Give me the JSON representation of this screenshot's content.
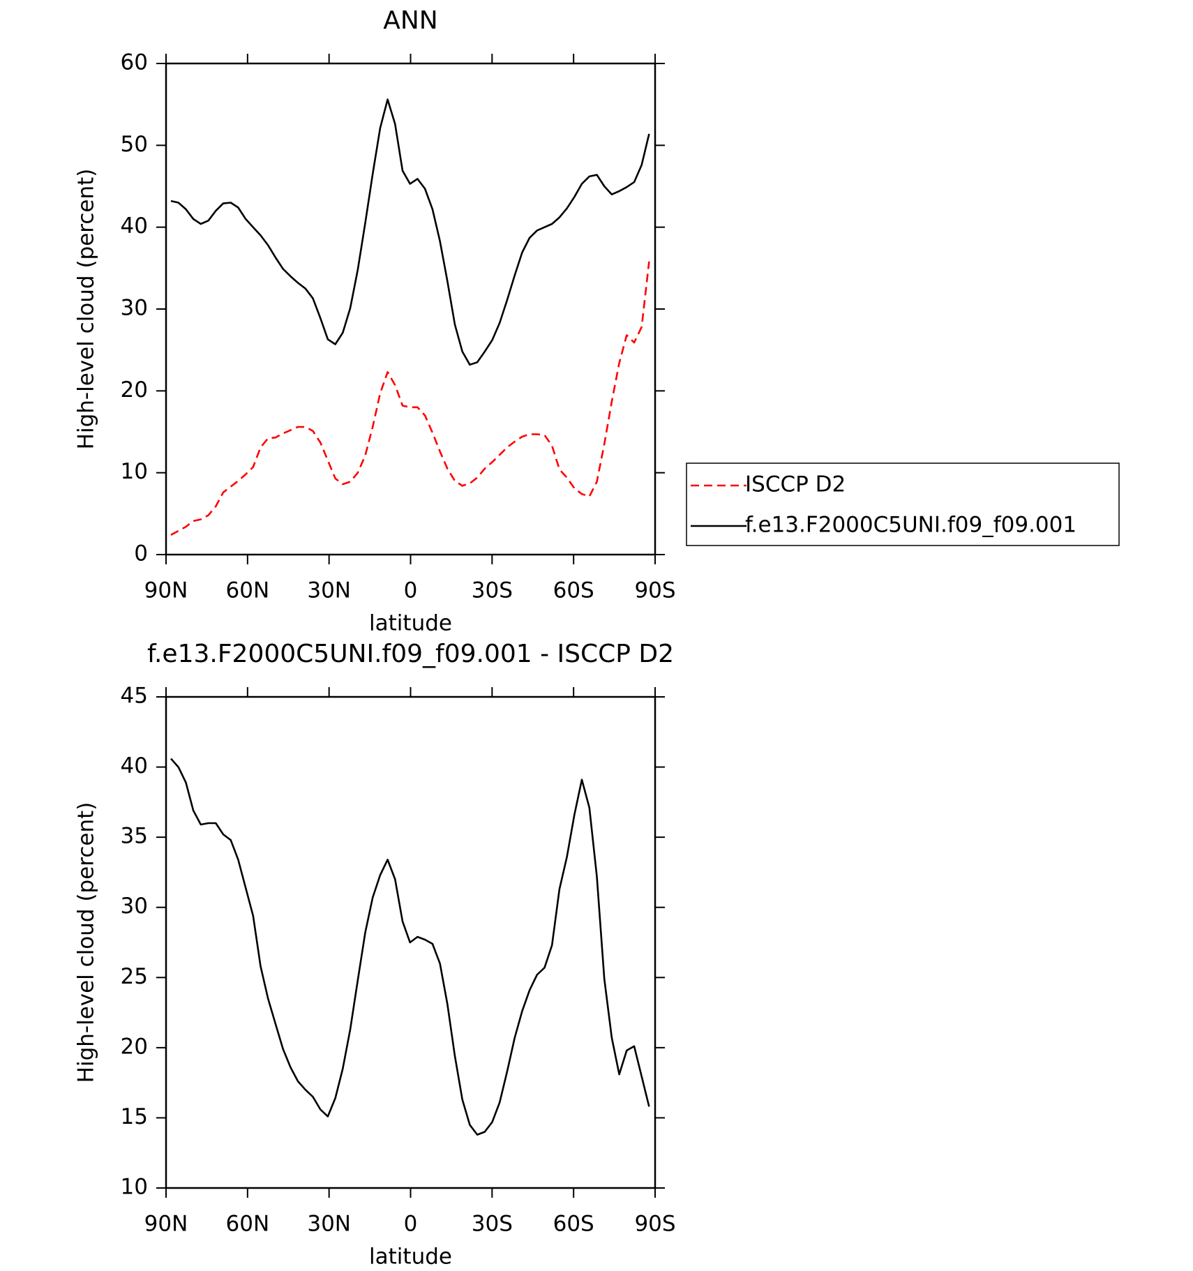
{
  "chart_data": [
    {
      "type": "line",
      "title": "ANN",
      "xlabel": "latitude",
      "ylabel": "High-level cloud (percent)",
      "x": [
        88.2,
        85.45,
        82.7,
        79.95,
        77.2,
        74.45,
        71.7,
        68.95,
        66.2,
        63.45,
        60.7,
        57.95,
        55.2,
        52.45,
        49.7,
        46.95,
        44.2,
        41.45,
        38.7,
        35.95,
        33.2,
        30.45,
        27.7,
        24.95,
        22.2,
        19.45,
        16.7,
        13.95,
        11.2,
        8.45,
        5.7,
        2.95,
        0.2,
        -2.55,
        -5.3,
        -8.05,
        -10.8,
        -13.55,
        -16.3,
        -19.05,
        -21.8,
        -24.55,
        -27.3,
        -30.05,
        -32.8,
        -35.55,
        -38.3,
        -41.05,
        -43.8,
        -46.55,
        -49.3,
        -52.05,
        -54.8,
        -57.55,
        -60.3,
        -63.05,
        -65.8,
        -68.55,
        -71.3,
        -74.05,
        -76.8,
        -79.55,
        -82.3,
        -85.05,
        -87.8
      ],
      "series": [
        {
          "name": "ISCCP D2",
          "color": "#ff0000",
          "linestyle": "dashed",
          "values": [
            2.4,
            2.9,
            3.4,
            4.1,
            4.3,
            4.8,
            5.9,
            7.6,
            8.3,
            9.0,
            9.8,
            10.7,
            13.1,
            14.2,
            14.3,
            14.8,
            15.2,
            15.6,
            15.6,
            15.1,
            13.7,
            11.5,
            9.3,
            8.6,
            8.9,
            10.0,
            12.1,
            15.6,
            19.7,
            22.3,
            20.7,
            18.2,
            18.0,
            18.0,
            17.0,
            14.9,
            12.6,
            10.5,
            9.0,
            8.4,
            8.7,
            9.4,
            10.5,
            11.3,
            12.2,
            13.1,
            13.8,
            14.4,
            14.7,
            14.7,
            14.6,
            13.3,
            10.4,
            9.4,
            8.1,
            7.4,
            7.1,
            8.9,
            13.5,
            18.7,
            23.4,
            26.8,
            25.9,
            27.8,
            35.8
          ]
        },
        {
          "name": "f.e13.F2000C5UNI.f09_f09.001",
          "color": "#000000",
          "linestyle": "solid",
          "values": [
            43.2,
            43.0,
            42.2,
            41.0,
            40.4,
            40.8,
            42.0,
            42.9,
            43.0,
            42.4,
            41.0,
            40.0,
            39.0,
            37.8,
            36.3,
            34.9,
            34.0,
            33.2,
            32.5,
            31.3,
            28.9,
            26.3,
            25.7,
            27.1,
            30.1,
            34.8,
            40.5,
            46.5,
            52.1,
            55.6,
            52.6,
            46.9,
            45.3,
            45.9,
            44.7,
            42.2,
            38.3,
            33.4,
            28.1,
            24.8,
            23.2,
            23.5,
            24.8,
            26.2,
            28.3,
            31.1,
            34.1,
            36.9,
            38.7,
            39.6,
            40.0,
            40.4,
            41.2,
            42.3,
            43.7,
            45.3,
            46.2,
            46.4,
            45.0,
            44.0,
            44.4,
            44.9,
            45.5,
            47.6,
            51.4
          ]
        }
      ],
      "xlim": [
        90,
        -90
      ],
      "xticks": [
        {
          "value": 90,
          "label": "90N"
        },
        {
          "value": 60,
          "label": "60N"
        },
        {
          "value": 30,
          "label": "30N"
        },
        0,
        {
          "value": -30,
          "label": "30S"
        },
        {
          "value": -60,
          "label": "60S"
        },
        {
          "value": -90,
          "label": "90S"
        }
      ],
      "ylim": [
        0,
        60
      ],
      "yticks": [
        0,
        10,
        20,
        30,
        40,
        50,
        60
      ],
      "legend": "right"
    },
    {
      "type": "line",
      "title": "f.e13.F2000C5UNI.f09_f09.001 - ISCCP D2",
      "xlabel": "latitude",
      "ylabel": "High-level cloud (percent)",
      "x": [
        88.2,
        85.45,
        82.7,
        79.95,
        77.2,
        74.45,
        71.7,
        68.95,
        66.2,
        63.45,
        60.7,
        57.95,
        55.2,
        52.45,
        49.7,
        46.95,
        44.2,
        41.45,
        38.7,
        35.95,
        33.2,
        30.45,
        27.7,
        24.95,
        22.2,
        19.45,
        16.7,
        13.95,
        11.2,
        8.45,
        5.7,
        2.95,
        0.2,
        -2.55,
        -5.3,
        -8.05,
        -10.8,
        -13.55,
        -16.3,
        -19.05,
        -21.8,
        -24.55,
        -27.3,
        -30.05,
        -32.8,
        -35.55,
        -38.3,
        -41.05,
        -43.8,
        -46.55,
        -49.3,
        -52.05,
        -54.8,
        -57.55,
        -60.3,
        -63.05,
        -65.8,
        -68.55,
        -71.3,
        -74.05,
        -76.8,
        -79.55,
        -82.3,
        -87.8
      ],
      "values": [
        40.6,
        40.0,
        38.9,
        36.9,
        35.9,
        36.0,
        36.0,
        35.2,
        34.8,
        33.4,
        31.4,
        29.4,
        25.8,
        23.5,
        21.7,
        19.9,
        18.6,
        17.6,
        17.0,
        16.5,
        15.6,
        15.1,
        16.4,
        18.5,
        21.3,
        24.8,
        28.2,
        30.7,
        32.3,
        33.4,
        32.0,
        29.0,
        27.5,
        27.9,
        27.7,
        27.4,
        26.0,
        23.1,
        19.4,
        16.3,
        14.5,
        13.8,
        14.0,
        14.7,
        16.1,
        18.3,
        20.7,
        22.6,
        24.1,
        25.2,
        25.7,
        27.3,
        31.3,
        33.6,
        36.6,
        39.1,
        37.1,
        32.2,
        24.9,
        20.7,
        18.1,
        19.8,
        20.1,
        15.8
      ],
      "color": "#000000",
      "xlim": [
        90,
        -90
      ],
      "xticks": [
        {
          "value": 90,
          "label": "90N"
        },
        {
          "value": 60,
          "label": "60N"
        },
        {
          "value": 30,
          "label": "30N"
        },
        0,
        {
          "value": -30,
          "label": "30S"
        },
        {
          "value": -60,
          "label": "60S"
        },
        {
          "value": -90,
          "label": "90S"
        }
      ],
      "ylim": [
        10,
        45
      ],
      "yticks": [
        10,
        15,
        20,
        25,
        30,
        35,
        40,
        45
      ]
    }
  ]
}
